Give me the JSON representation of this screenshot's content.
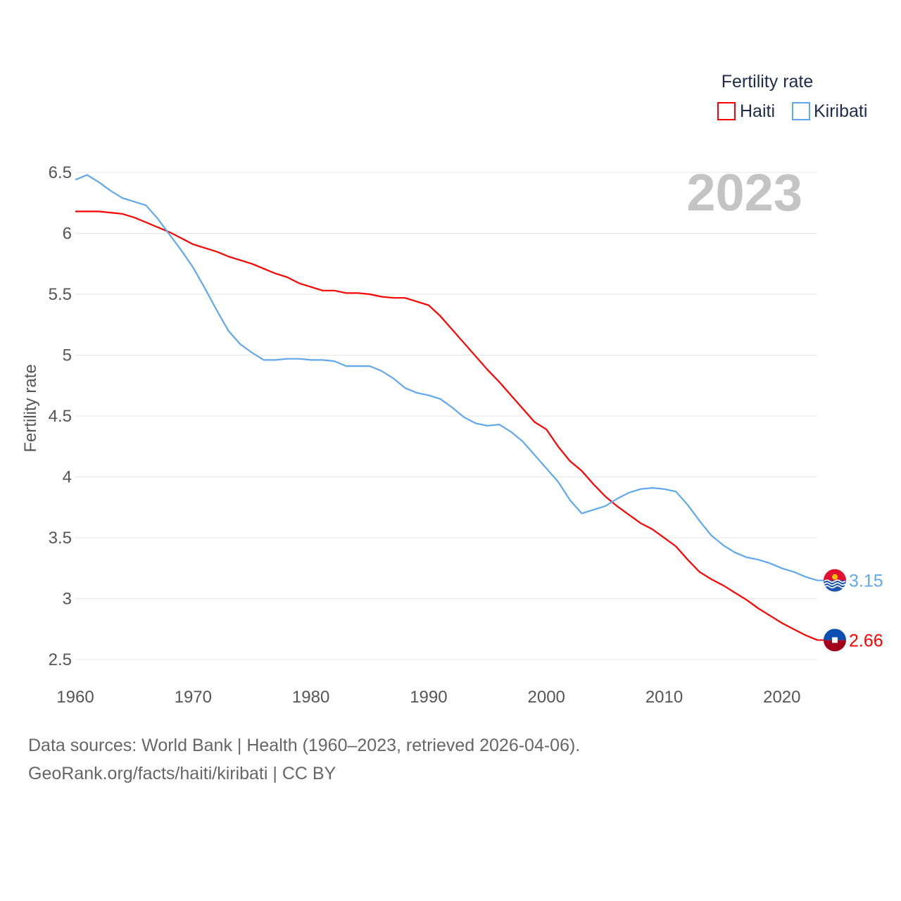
{
  "chart_data": {
    "type": "line",
    "title": "",
    "year_label": "2023",
    "xlabel": "",
    "ylabel": "Fertility rate",
    "legend_title": "Fertility rate",
    "legend_position": "top-right",
    "xlim": [
      1960,
      2023
    ],
    "ylim": [
      2.5,
      6.5
    ],
    "xticks": [
      "1960",
      "1970",
      "1980",
      "1990",
      "2000",
      "2010",
      "2020"
    ],
    "yticks": [
      "2.5",
      "3",
      "3.5",
      "4",
      "4.5",
      "5",
      "5.5",
      "6",
      "6.5"
    ],
    "grid": true,
    "x_start": 1960,
    "series": [
      {
        "name": "Haiti",
        "color": "#ff0000",
        "end_label": "2.66",
        "flag": "haiti-flag",
        "values": [
          6.18,
          6.18,
          6.18,
          6.17,
          6.16,
          6.13,
          6.09,
          6.05,
          6.01,
          5.96,
          5.91,
          5.88,
          5.85,
          5.81,
          5.78,
          5.75,
          5.71,
          5.67,
          5.64,
          5.59,
          5.56,
          5.53,
          5.53,
          5.51,
          5.51,
          5.5,
          5.48,
          5.47,
          5.47,
          5.44,
          5.41,
          5.32,
          5.21,
          5.1,
          4.99,
          4.88,
          4.78,
          4.67,
          4.56,
          4.45,
          4.39,
          4.25,
          4.13,
          4.05,
          3.94,
          3.84,
          3.76,
          3.69,
          3.62,
          3.57,
          3.5,
          3.43,
          3.32,
          3.22,
          3.16,
          3.11,
          3.05,
          2.99,
          2.92,
          2.86,
          2.8,
          2.75,
          2.7,
          2.66
        ]
      },
      {
        "name": "Kiribati",
        "color": "#5fa8ee",
        "end_label": "3.15",
        "flag": "kiribati-flag",
        "values": [
          6.44,
          6.48,
          6.42,
          6.35,
          6.29,
          6.26,
          6.23,
          6.12,
          5.99,
          5.86,
          5.72,
          5.55,
          5.37,
          5.2,
          5.09,
          5.02,
          4.96,
          4.96,
          4.97,
          4.97,
          4.96,
          4.96,
          4.95,
          4.91,
          4.91,
          4.91,
          4.87,
          4.81,
          4.73,
          4.69,
          4.67,
          4.64,
          4.57,
          4.49,
          4.44,
          4.42,
          4.43,
          4.37,
          4.29,
          4.18,
          4.07,
          3.96,
          3.81,
          3.7,
          3.73,
          3.76,
          3.82,
          3.87,
          3.9,
          3.91,
          3.9,
          3.88,
          3.77,
          3.64,
          3.52,
          3.44,
          3.38,
          3.34,
          3.32,
          3.29,
          3.25,
          3.22,
          3.18,
          3.15
        ]
      }
    ]
  },
  "footer": {
    "sources": "Data sources: World Bank | Health (1960–2023, retrieved 2026-04-06).",
    "credit": "GeoRank.org/facts/haiti/kiribati | CC BY"
  }
}
